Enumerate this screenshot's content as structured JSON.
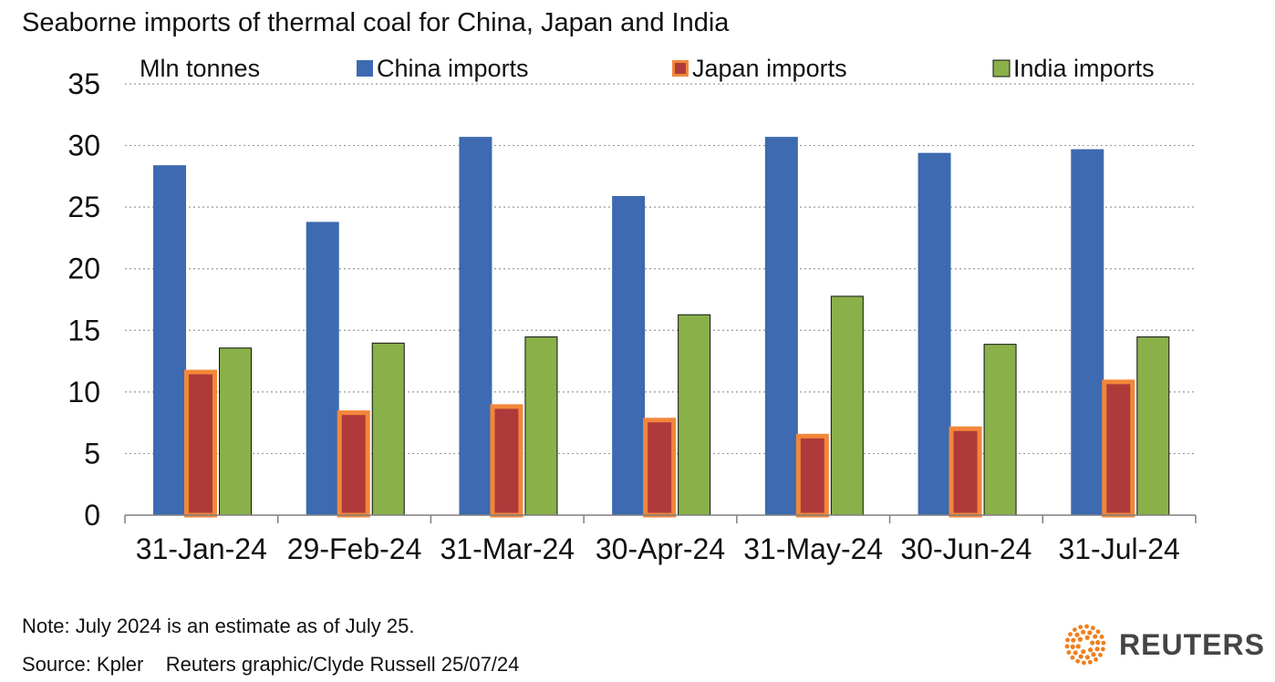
{
  "chart_data": {
    "type": "bar",
    "title": "Seaborne imports of thermal coal for China, Japan and India",
    "ylabel": "Mln tonnes",
    "xlabel": "",
    "ylim": [
      0,
      35
    ],
    "yticks": [
      0,
      5,
      10,
      15,
      20,
      25,
      30,
      35
    ],
    "grid": true,
    "legend_position": "top",
    "categories": [
      "31-Jan-24",
      "29-Feb-24",
      "31-Mar-24",
      "30-Apr-24",
      "31-May-24",
      "30-Jun-24",
      "31-Jul-24"
    ],
    "series": [
      {
        "name": "China imports",
        "color": "#3D6AB0",
        "values": [
          28.4,
          23.8,
          30.7,
          25.9,
          30.7,
          29.4,
          29.7
        ]
      },
      {
        "name": "Japan imports",
        "color": "#B03A3A",
        "border_color": "#F2873A",
        "values": [
          11.8,
          8.5,
          9.0,
          7.9,
          6.6,
          7.2,
          11.0
        ]
      },
      {
        "name": "India imports",
        "color": "#8AB04A",
        "values": [
          13.6,
          14.0,
          14.5,
          16.3,
          17.8,
          13.9,
          14.5
        ]
      }
    ]
  },
  "footer": {
    "note": "Note: July 2024 is an estimate as of July 25.",
    "source": "Source: Kpler    Reuters graphic/Clyde Russell 25/07/24"
  },
  "branding": {
    "name": "REUTERS",
    "logo": "reuters-dot-sunburst-logo",
    "logo_color": "#F07F1C"
  }
}
